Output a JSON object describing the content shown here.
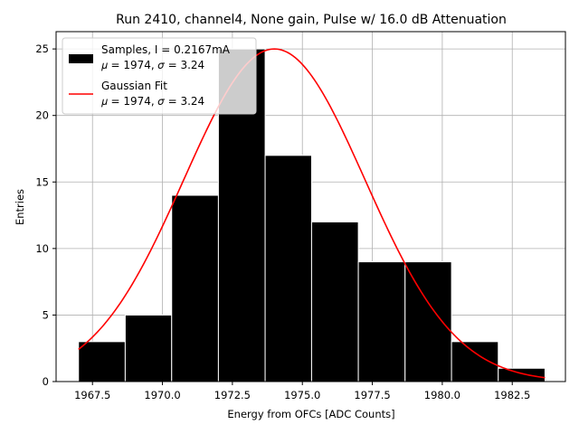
{
  "chart_data": {
    "type": "bar",
    "title": "Run 2410, channel4, None gain, Pulse w/ 16.0 dB Attenuation",
    "xlabel": "Energy from OFCs [ADC Counts]",
    "ylabel": "Entries",
    "xlim": [
      1966.2,
      1984.4
    ],
    "ylim": [
      0,
      26.3
    ],
    "grid": true,
    "legend_position": "top-left",
    "x_ticks": [
      1967.5,
      1970.0,
      1972.5,
      1975.0,
      1977.5,
      1980.0,
      1982.5
    ],
    "x_tick_labels": [
      "1967.5",
      "1970.0",
      "1972.5",
      "1975.0",
      "1977.5",
      "1980.0",
      "1982.5"
    ],
    "y_ticks": [
      0,
      5,
      10,
      15,
      20,
      25
    ],
    "y_tick_labels": [
      "0",
      "5",
      "10",
      "15",
      "20",
      "25"
    ],
    "bins": [
      {
        "x0": 1967.0,
        "x1": 1968.67,
        "count": 3
      },
      {
        "x0": 1968.67,
        "x1": 1970.33,
        "count": 5
      },
      {
        "x0": 1970.33,
        "x1": 1972.0,
        "count": 14
      },
      {
        "x0": 1972.0,
        "x1": 1973.67,
        "count": 25
      },
      {
        "x0": 1973.67,
        "x1": 1975.33,
        "count": 17
      },
      {
        "x0": 1975.33,
        "x1": 1977.0,
        "count": 12
      },
      {
        "x0": 1977.0,
        "x1": 1978.67,
        "count": 9
      },
      {
        "x0": 1978.67,
        "x1": 1980.33,
        "count": 9
      },
      {
        "x0": 1980.33,
        "x1": 1982.0,
        "count": 3
      },
      {
        "x0": 1982.0,
        "x1": 1983.67,
        "count": 1
      }
    ],
    "fit": {
      "type": "gaussian",
      "name": "Gaussian Fit",
      "amplitude": 25.0,
      "mu": 1974.0,
      "sigma": 3.24,
      "x_range": [
        1967.0,
        1983.67
      ]
    },
    "legend": [
      {
        "kind": "patch",
        "line1": "Samples, I = 0.2167mA",
        "line2": "𝜇 = 1974, 𝜎 = 3.24"
      },
      {
        "kind": "line",
        "line1": "Gaussian Fit",
        "line2": "𝜇 = 1974, 𝜎 = 3.24"
      }
    ],
    "colors": {
      "bar": "#000000",
      "bar_edge": "#ffffff",
      "fit": "#ff0000",
      "grid": "#b0b0b0",
      "legend_border": "#cccccc"
    }
  }
}
